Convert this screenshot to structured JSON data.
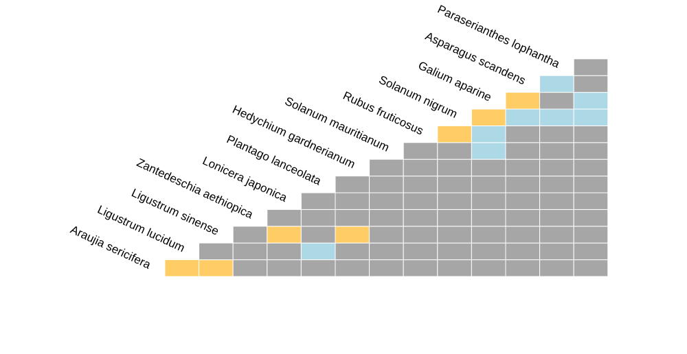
{
  "chart_data": {
    "type": "heatmap",
    "layout": "lower-triangle",
    "species": [
      "Araujia sericifera",
      "Ligustrum lucidum",
      "Ligustrum sinense",
      "Zantedeschia aethiopica",
      "Lonicera japonica",
      "Plantago lanceolata",
      "Hedychium gardnerianum",
      "Solanum mauritianum",
      "Rubus fruticosus",
      "Solanum nigrum",
      "Galium aparine",
      "Asparagus scandens",
      "Paraserianthes lophantha"
    ],
    "colors": {
      "g": "#a6a6a6",
      "o": "#ffcc66",
      "b": "#add8e6"
    },
    "matrix": [
      [
        "o"
      ],
      [
        "o",
        "g"
      ],
      [
        "g",
        "g",
        "g"
      ],
      [
        "g",
        "g",
        "o",
        "g"
      ],
      [
        "g",
        "b",
        "g",
        "g",
        "g"
      ],
      [
        "g",
        "g",
        "o",
        "g",
        "g",
        "g"
      ],
      [
        "g",
        "g",
        "g",
        "g",
        "g",
        "g",
        "g"
      ],
      [
        "g",
        "g",
        "g",
        "g",
        "g",
        "g",
        "g",
        "g"
      ],
      [
        "g",
        "g",
        "g",
        "g",
        "g",
        "g",
        "g",
        "g",
        "o"
      ],
      [
        "g",
        "g",
        "g",
        "g",
        "g",
        "g",
        "g",
        "b",
        "b",
        "o"
      ],
      [
        "g",
        "g",
        "g",
        "g",
        "g",
        "g",
        "g",
        "g",
        "g",
        "b",
        "o"
      ],
      [
        "g",
        "g",
        "g",
        "g",
        "g",
        "g",
        "g",
        "g",
        "g",
        "b",
        "g",
        "b"
      ],
      [
        "g",
        "g",
        "g",
        "g",
        "g",
        "g",
        "g",
        "g",
        "g",
        "b",
        "b",
        "g",
        "g"
      ]
    ],
    "grid": false,
    "legend": "none"
  }
}
